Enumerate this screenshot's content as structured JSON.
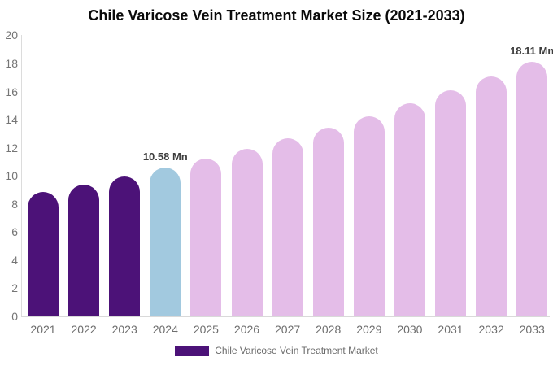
{
  "title": "Chile Varicose Vein Treatment Market Size (2021-2033)",
  "colors": {
    "historical_bar": "#4C1278",
    "current_bar": "#A2C9DF",
    "forecast_bar": "#E4BDE8",
    "axis_line": "#D9D9D9",
    "tick_text": "#6E6E6E",
    "data_label_text": "#3D3D3D",
    "title_text": "#0A0A0A"
  },
  "chart_data": {
    "type": "bar",
    "title": "Chile Varicose Vein Treatment Market Size (2021-2033)",
    "unit": "Mn",
    "categories": [
      "2021",
      "2022",
      "2023",
      "2024",
      "2025",
      "2026",
      "2027",
      "2028",
      "2029",
      "2030",
      "2031",
      "2032",
      "2033"
    ],
    "values": [
      8.84,
      9.39,
      9.97,
      10.58,
      11.23,
      11.92,
      12.66,
      13.43,
      14.26,
      15.14,
      16.07,
      17.06,
      18.11
    ],
    "bar_colors": [
      "#4C1278",
      "#4C1278",
      "#4C1278",
      "#A2C9DF",
      "#E4BDE8",
      "#E4BDE8",
      "#E4BDE8",
      "#E4BDE8",
      "#E4BDE8",
      "#E4BDE8",
      "#E4BDE8",
      "#E4BDE8",
      "#E4BDE8"
    ],
    "annotations": [
      {
        "category": "2024",
        "text": "10.58 Mn"
      },
      {
        "category": "2033",
        "text": "18.11 Mn"
      }
    ],
    "xlabel": "",
    "ylabel": "",
    "ylim": [
      0,
      20
    ],
    "yticks": [
      0,
      2,
      4,
      6,
      8,
      10,
      12,
      14,
      16,
      18,
      20
    ],
    "grid": false,
    "legend": {
      "position": "bottom",
      "items": [
        {
          "label": "Chile Varicose Vein Treatment Market",
          "color": "#4C1278"
        }
      ]
    }
  }
}
